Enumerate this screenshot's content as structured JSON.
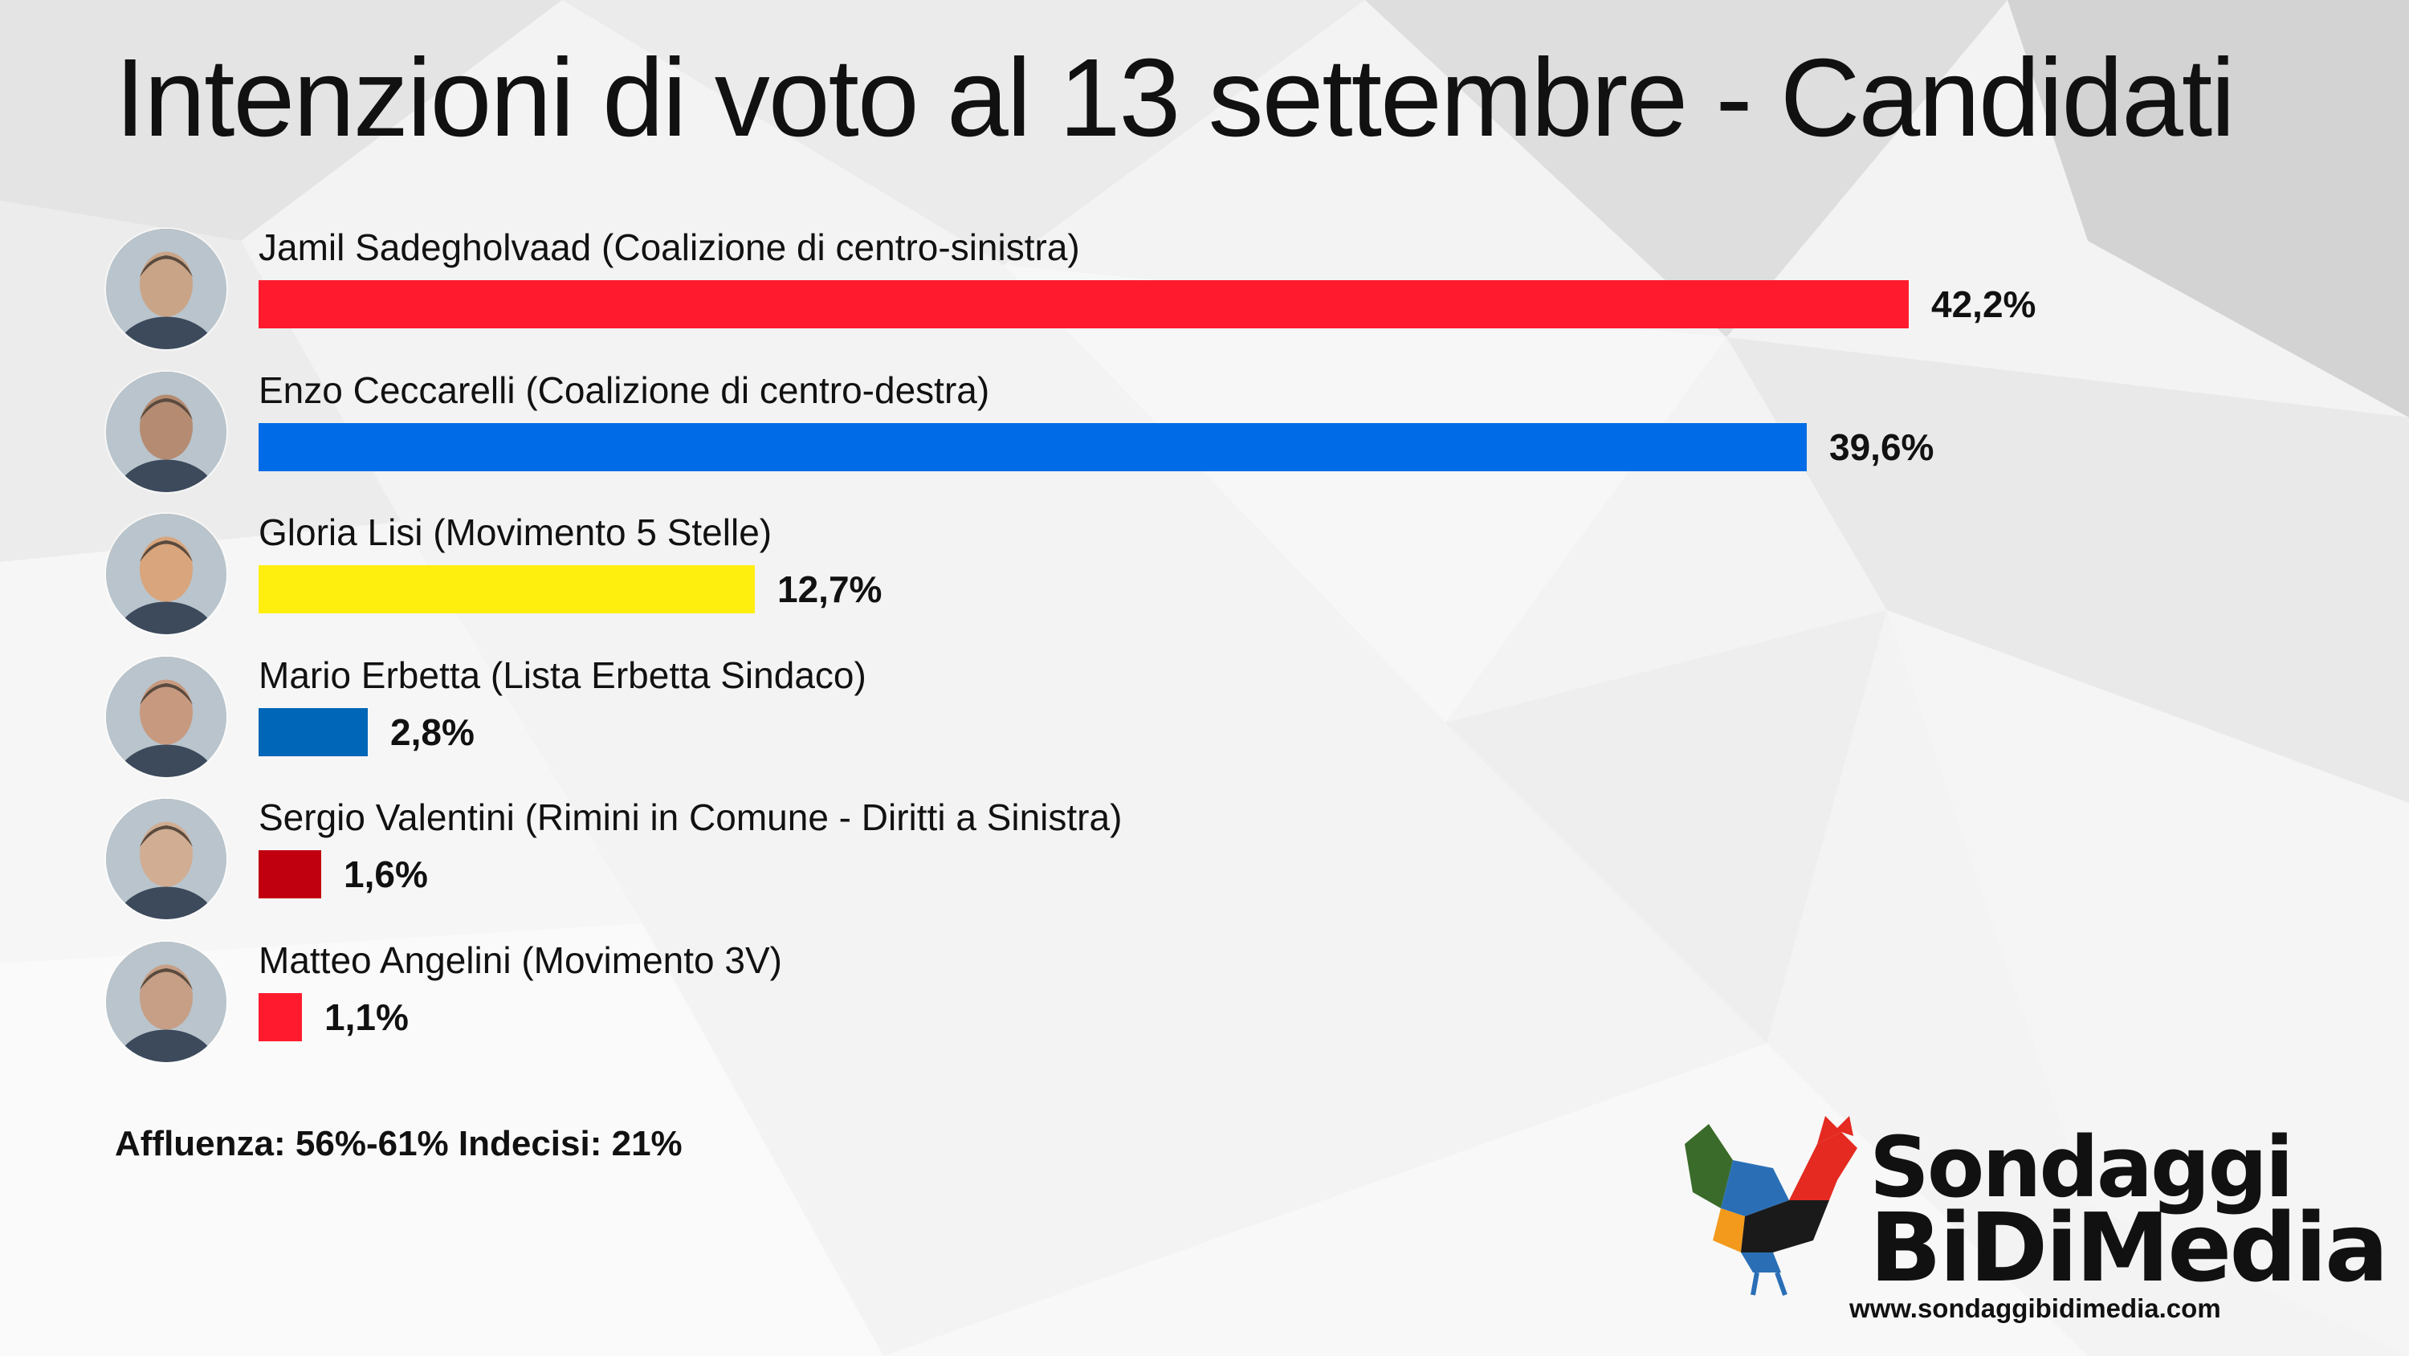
{
  "title": "Intenzioni di voto al 13 settembre - Candidati",
  "chart_data": {
    "type": "bar",
    "orientation": "horizontal",
    "title": "Intenzioni di voto al 13 settembre - Candidati",
    "categories": [
      "Jamil Sadegholvaad (Coalizione di centro-sinistra)",
      "Enzo Ceccarelli (Coalizione di centro-destra)",
      "Gloria Lisi (Movimento 5 Stelle)",
      "Mario Erbetta (Lista Erbetta Sindaco)",
      "Sergio Valentini (Rimini in Comune - Diritti a Sinistra)",
      "Matteo Angelini (Movimento 3V)"
    ],
    "values": [
      42.2,
      39.6,
      12.7,
      2.8,
      1.6,
      1.1
    ],
    "value_labels": [
      "42,2%",
      "39,6%",
      "12,7%",
      "2,8%",
      "1,6%",
      "1,1%"
    ],
    "colors": [
      "#ff1b2d",
      "#006be6",
      "#ffef0f",
      "#0066b8",
      "#c0000f",
      "#ff1b2d"
    ],
    "xlim": [
      0,
      42.2
    ],
    "grid": false,
    "legend": "none"
  },
  "footnote": "Affluenza: 56%-61% Indecisi: 21%",
  "logo": {
    "line1": "Sondaggi",
    "line2": "BiDiMedia",
    "url": "www.sondaggibidimedia.com"
  }
}
